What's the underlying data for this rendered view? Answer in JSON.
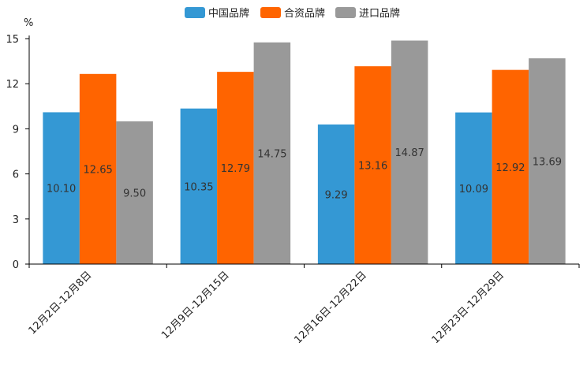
{
  "chart_data": {
    "type": "bar",
    "ylabel": "%",
    "ylim": [
      0,
      15
    ],
    "yticks": [
      0,
      3,
      6,
      9,
      12,
      15
    ],
    "categories": [
      "12月2日-12月8日",
      "12月9日-12月15日",
      "12月16日-12月22日",
      "12月23日-12月29日"
    ],
    "series": [
      {
        "name": "中国品牌",
        "color": "#3498d4",
        "values": [
          10.1,
          10.35,
          9.29,
          10.09
        ],
        "labels": [
          "10.10",
          "10.35",
          "9.29",
          "10.09"
        ]
      },
      {
        "name": "合资品牌",
        "color": "#ff6400",
        "values": [
          12.65,
          12.79,
          13.16,
          12.92
        ],
        "labels": [
          "12.65",
          "12.79",
          "13.16",
          "12.92"
        ]
      },
      {
        "name": "进口品牌",
        "color": "#999999",
        "values": [
          9.5,
          14.75,
          14.87,
          13.69
        ],
        "labels": [
          "9.50",
          "14.75",
          "14.87",
          "13.69"
        ]
      }
    ],
    "legend_position": "top-center",
    "grid": false
  }
}
